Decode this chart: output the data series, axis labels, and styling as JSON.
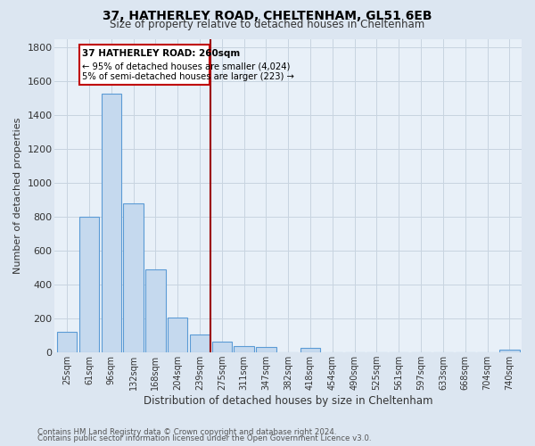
{
  "title": "37, HATHERLEY ROAD, CHELTENHAM, GL51 6EB",
  "subtitle": "Size of property relative to detached houses in Cheltenham",
  "xlabel": "Distribution of detached houses by size in Cheltenham",
  "ylabel": "Number of detached properties",
  "categories": [
    "25sqm",
    "61sqm",
    "96sqm",
    "132sqm",
    "168sqm",
    "204sqm",
    "239sqm",
    "275sqm",
    "311sqm",
    "347sqm",
    "382sqm",
    "418sqm",
    "454sqm",
    "490sqm",
    "525sqm",
    "561sqm",
    "597sqm",
    "633sqm",
    "668sqm",
    "704sqm",
    "740sqm"
  ],
  "values": [
    120,
    800,
    1530,
    880,
    490,
    205,
    105,
    65,
    40,
    30,
    0,
    25,
    0,
    0,
    0,
    0,
    0,
    0,
    0,
    0,
    15
  ],
  "red_line_index": 7,
  "highlight_label": "37 HATHERLEY ROAD: 260sqm",
  "annotation_line1": "← 95% of detached houses are smaller (4,024)",
  "annotation_line2": "5% of semi-detached houses are larger (223) →",
  "bar_color": "#c5d9ee",
  "bar_edge_color": "#5b9bd5",
  "highlight_line_color": "#9b0000",
  "box_edge_color": "#c00000",
  "bg_color": "#dce6f1",
  "plot_bg_color": "#e8f0f8",
  "annotation_box_bg": "#ffffff",
  "footer_line1": "Contains HM Land Registry data © Crown copyright and database right 2024.",
  "footer_line2": "Contains public sector information licensed under the Open Government Licence v3.0.",
  "ylim": [
    0,
    1850
  ],
  "yticks": [
    0,
    200,
    400,
    600,
    800,
    1000,
    1200,
    1400,
    1600,
    1800
  ]
}
